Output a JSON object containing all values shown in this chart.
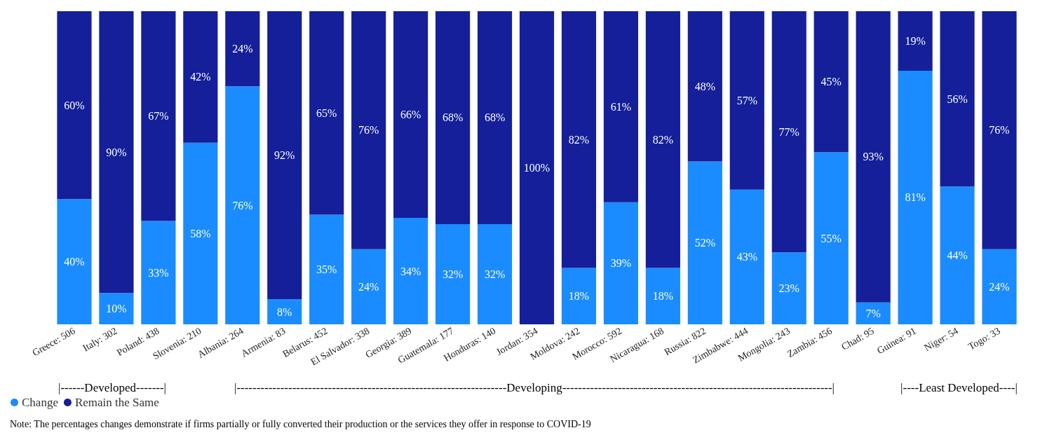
{
  "chart_data": {
    "type": "bar",
    "stacked": true,
    "categories": [
      "Greece: 506",
      "Italy: 302",
      "Poland: 438",
      "Slovenia: 210",
      "Albania: 264",
      "Armenia: 83",
      "Belarus: 452",
      "El Salvador: 338",
      "Georgia: 389",
      "Guatemala: 177",
      "Honduras: 140",
      "Jordan: 354",
      "Moldova: 242",
      "Morocco: 592",
      "Nicaragua: 168",
      "Russia: 822",
      "Zimbabwe: 444",
      "Mongolia: 243",
      "Zambia: 456",
      "Chad: 95",
      "Guinea: 91",
      "Niger: 54",
      "Togo: 33"
    ],
    "series": [
      {
        "name": "Change",
        "color": "#1a8cff",
        "values": [
          40,
          10,
          33,
          58,
          76,
          8,
          35,
          24,
          34,
          32,
          32,
          0,
          18,
          39,
          18,
          52,
          43,
          23,
          55,
          7,
          81,
          44,
          24
        ],
        "value_labels": [
          "40%",
          "10%",
          "33%",
          "58%",
          "76%",
          "8%",
          "35%",
          "24%",
          "34%",
          "32%",
          "32%",
          null,
          "18%",
          "39%",
          "18%",
          "52%",
          "43%",
          "23%",
          "55%",
          "7%",
          "81%",
          "44%",
          "24%"
        ]
      },
      {
        "name": "Remain the Same",
        "color": "#141f99",
        "values": [
          60,
          90,
          67,
          42,
          24,
          92,
          65,
          76,
          66,
          68,
          68,
          100,
          82,
          61,
          82,
          48,
          57,
          77,
          45,
          93,
          19,
          56,
          76
        ],
        "value_labels": [
          "60%",
          "90%",
          "67%",
          "42%",
          "24%",
          "92%",
          "65%",
          "76%",
          "66%",
          "68%",
          "68%",
          "100%",
          "82%",
          "61%",
          "82%",
          "48%",
          "57%",
          "77%",
          "45%",
          "93%",
          "19%",
          "56%",
          "76%"
        ]
      }
    ],
    "annotations": [
      "|------Developed-------|",
      "|--------------------------------------------------------------------Developing--------------------------------------------------------------------|",
      "|----Least Developed----|",
      "Note: The percentages changes demonstrate if firms partially or fully converted their production or the services they offer in response to COVID-19"
    ],
    "legend": "bottom left"
  }
}
